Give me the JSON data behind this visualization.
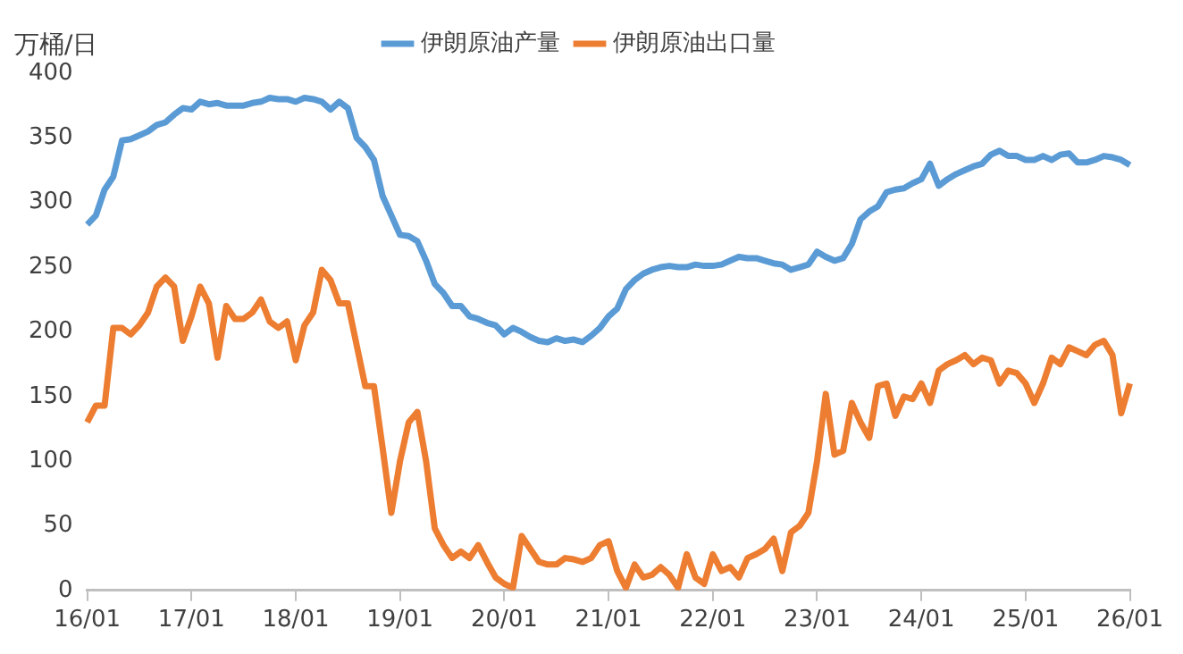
{
  "chart_data": {
    "type": "line",
    "ylabel": "万桶/日",
    "legend": "top",
    "grid": false,
    "marker": "none",
    "line_style": "solid",
    "ylim": [
      0,
      400
    ],
    "yticks": [
      0,
      50,
      100,
      150,
      200,
      250,
      300,
      350,
      400
    ],
    "categories": [
      "16/01",
      null,
      null,
      null,
      null,
      null,
      null,
      null,
      null,
      null,
      null,
      null,
      "17/01",
      null,
      null,
      null,
      null,
      null,
      null,
      null,
      null,
      null,
      null,
      null,
      "18/01",
      null,
      null,
      null,
      null,
      null,
      null,
      null,
      null,
      null,
      null,
      null,
      "19/01",
      null,
      null,
      null,
      null,
      null,
      null,
      null,
      null,
      null,
      null,
      null,
      "20/01",
      null,
      null,
      null,
      null,
      null,
      null,
      null,
      null,
      null,
      null,
      null,
      "21/01",
      null,
      null,
      null,
      null,
      null,
      null,
      null,
      null,
      null,
      null,
      null,
      "22/01",
      null,
      null,
      null,
      null,
      null,
      null,
      null,
      null,
      null,
      null,
      null,
      "23/01",
      null,
      null,
      null,
      null,
      null,
      null,
      null,
      null,
      null,
      null,
      null,
      "24/01",
      null,
      null,
      null,
      null,
      null,
      null,
      null,
      null,
      null,
      null,
      null,
      "25/01",
      null,
      null,
      null,
      null,
      null,
      null,
      null,
      null,
      null,
      null,
      null,
      "26/01"
    ],
    "series": [
      {
        "name": "伊朗原油产量",
        "color": "#5b9bd5",
        "values": [
          283,
          290,
          310,
          320,
          348,
          349,
          352,
          355,
          360,
          362,
          368,
          373,
          372,
          378,
          376,
          377,
          375,
          375,
          375,
          377,
          378,
          381,
          380,
          380,
          378,
          381,
          380,
          378,
          372,
          378,
          373,
          350,
          343,
          333,
          305,
          290,
          275,
          274,
          270,
          255,
          237,
          230,
          220,
          220,
          212,
          210,
          207,
          205,
          198,
          203,
          200,
          196,
          193,
          192,
          195,
          193,
          194,
          192,
          197,
          203,
          212,
          218,
          233,
          240,
          245,
          248,
          250,
          251,
          250,
          250,
          252,
          251,
          251,
          252,
          255,
          258,
          257,
          257,
          255,
          253,
          252,
          248,
          250,
          252,
          262,
          258,
          255,
          257,
          268,
          287,
          293,
          297,
          308,
          310,
          311,
          315,
          318,
          330,
          313,
          318,
          322,
          325,
          328,
          330,
          337,
          340,
          336,
          336,
          333,
          333,
          336,
          333,
          337,
          338,
          331,
          331,
          333,
          336,
          335,
          333,
          329
        ]
      },
      {
        "name": "伊朗原油出口量",
        "color": "#ed7d31",
        "values": [
          130,
          143,
          143,
          203,
          203,
          198,
          205,
          215,
          235,
          242,
          235,
          193,
          212,
          235,
          222,
          180,
          220,
          210,
          210,
          215,
          225,
          208,
          203,
          208,
          178,
          205,
          215,
          248,
          240,
          222,
          222,
          190,
          158,
          158,
          110,
          60,
          100,
          130,
          138,
          100,
          48,
          35,
          25,
          30,
          25,
          35,
          22,
          10,
          5,
          2,
          42,
          32,
          22,
          20,
          20,
          25,
          24,
          22,
          25,
          35,
          38,
          15,
          2,
          20,
          10,
          12,
          18,
          12,
          2,
          28,
          10,
          5,
          28,
          15,
          18,
          10,
          25,
          28,
          32,
          40,
          15,
          45,
          50,
          60,
          100,
          152,
          105,
          108,
          145,
          130,
          118,
          158,
          160,
          135,
          150,
          148,
          160,
          145,
          170,
          175,
          178,
          182,
          175,
          180,
          178,
          160,
          170,
          168,
          160,
          145,
          160,
          180,
          175,
          188,
          185,
          182,
          190,
          193,
          182,
          137,
          160
        ]
      }
    ]
  }
}
